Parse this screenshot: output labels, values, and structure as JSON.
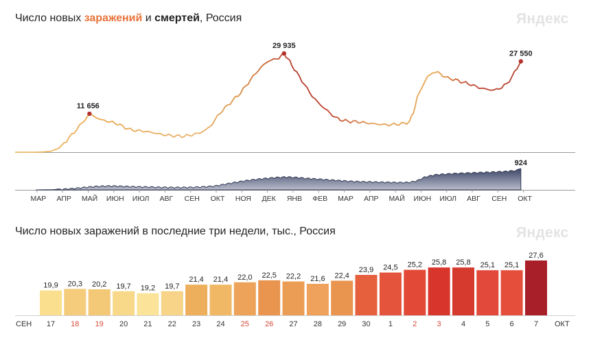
{
  "title1": {
    "prefix": "Число новых ",
    "cases": "заражений",
    "mid": " и ",
    "deaths": "смертей",
    "suffix": ", Россия"
  },
  "title2": "Число новых заражений в последние три недели, тыс., Россия",
  "logo": "Яндекс",
  "chart_data": [
    {
      "type": "line",
      "title": "Число новых заражений и смертей, Россия",
      "x_tick_labels": [
        "МАР",
        "АПР",
        "МАЙ",
        "ИЮН",
        "ИЮЛ",
        "АВГ",
        "СЕН",
        "ОКТ",
        "НОЯ",
        "ДЕК",
        "ЯНВ",
        "ФЕВ",
        "МАР",
        "АПР",
        "МАЙ",
        "ИЮН",
        "ИЮЛ",
        "АВГ",
        "СЕН",
        "ОКТ"
      ],
      "series": [
        {
          "color": "#e8a64e",
          "annotations": [
            {
              "label": "11 656",
              "value": 11656
            },
            {
              "label": "29 935",
              "value": 29935
            },
            {
              "label": "27 550",
              "value": 27550
            }
          ],
          "points": [
            [
              0,
              0
            ],
            [
              0.3,
              60
            ],
            [
              0.6,
              300
            ],
            [
              0.9,
              1200
            ],
            [
              1.2,
              3500
            ],
            [
              1.5,
              6000
            ],
            [
              1.8,
              8800
            ],
            [
              2.0,
              10500
            ],
            [
              2.1,
              11656
            ],
            [
              2.25,
              11000
            ],
            [
              2.4,
              10400
            ],
            [
              2.6,
              9700
            ],
            [
              2.8,
              9400
            ],
            [
              3.0,
              9000
            ],
            [
              3.2,
              8600
            ],
            [
              3.4,
              7800
            ],
            [
              3.7,
              6800
            ],
            [
              4.0,
              6500
            ],
            [
              4.3,
              6300
            ],
            [
              4.6,
              5900
            ],
            [
              4.9,
              5400
            ],
            [
              5.2,
              5100
            ],
            [
              5.5,
              4900
            ],
            [
              5.8,
              4850
            ],
            [
              6.0,
              5100
            ],
            [
              6.3,
              5600
            ],
            [
              6.6,
              6500
            ],
            [
              6.9,
              8500
            ],
            [
              7.1,
              11000
            ],
            [
              7.4,
              13500
            ],
            [
              7.7,
              15700
            ],
            [
              8.0,
              18000
            ],
            [
              8.3,
              21000
            ],
            [
              8.6,
              24000
            ],
            [
              8.9,
              26500
            ],
            [
              9.1,
              27700
            ],
            [
              9.3,
              28100
            ],
            [
              9.5,
              28600
            ],
            [
              9.7,
              29935
            ],
            [
              9.85,
              28400
            ],
            [
              10.0,
              26500
            ],
            [
              10.2,
              24000
            ],
            [
              10.5,
              20500
            ],
            [
              10.8,
              17000
            ],
            [
              11.1,
              14500
            ],
            [
              11.4,
              12500
            ],
            [
              11.7,
              10500
            ],
            [
              12.0,
              9600
            ],
            [
              12.3,
              9300
            ],
            [
              12.6,
              9200
            ],
            [
              12.9,
              8900
            ],
            [
              13.2,
              8600
            ],
            [
              13.5,
              8400
            ],
            [
              13.8,
              8300
            ],
            [
              14.1,
              8500
            ],
            [
              14.4,
              8700
            ],
            [
              14.6,
              9300
            ],
            [
              14.75,
              12000
            ],
            [
              14.9,
              16500
            ],
            [
              15.1,
              20000
            ],
            [
              15.3,
              22800
            ],
            [
              15.5,
              24100
            ],
            [
              15.7,
              24300
            ],
            [
              15.9,
              23200
            ],
            [
              16.1,
              22500
            ],
            [
              16.4,
              21900
            ],
            [
              16.7,
              21200
            ],
            [
              17.0,
              20500
            ],
            [
              17.3,
              19600
            ],
            [
              17.6,
              19100
            ],
            [
              17.9,
              18800
            ],
            [
              18.2,
              19600
            ],
            [
              18.4,
              20800
            ],
            [
              18.6,
              22700
            ],
            [
              18.8,
              25600
            ],
            [
              18.95,
              27550
            ]
          ]
        },
        {
          "color": "#4d5676",
          "annotations": [
            {
              "label": "924",
              "value": 924
            }
          ],
          "points": [
            [
              0,
              0
            ],
            [
              0.6,
              8
            ],
            [
              1.2,
              40
            ],
            [
              1.6,
              75
            ],
            [
              2.0,
              120
            ],
            [
              2.4,
              155
            ],
            [
              2.8,
              170
            ],
            [
              3.2,
              165
            ],
            [
              3.6,
              150
            ],
            [
              4.0,
              135
            ],
            [
              4.5,
              125
            ],
            [
              5.0,
              110
            ],
            [
              5.5,
              105
            ],
            [
              6.0,
              110
            ],
            [
              6.5,
              130
            ],
            [
              7.0,
              170
            ],
            [
              7.4,
              250
            ],
            [
              7.8,
              330
            ],
            [
              8.2,
              400
            ],
            [
              8.6,
              460
            ],
            [
              9.0,
              500
            ],
            [
              9.4,
              540
            ],
            [
              9.8,
              560
            ],
            [
              10.2,
              540
            ],
            [
              10.6,
              500
            ],
            [
              11.0,
              470
            ],
            [
              11.4,
              440
            ],
            [
              11.8,
              410
            ],
            [
              12.2,
              380
            ],
            [
              12.6,
              360
            ],
            [
              13.0,
              350
            ],
            [
              13.4,
              340
            ],
            [
              13.8,
              330
            ],
            [
              14.2,
              320
            ],
            [
              14.6,
              330
            ],
            [
              14.9,
              400
            ],
            [
              15.2,
              560
            ],
            [
              15.6,
              660
            ],
            [
              16.0,
              690
            ],
            [
              16.5,
              720
            ],
            [
              17.0,
              740
            ],
            [
              17.5,
              760
            ],
            [
              17.9,
              780
            ],
            [
              18.3,
              800
            ],
            [
              18.6,
              830
            ],
            [
              18.8,
              860
            ],
            [
              18.95,
              924
            ]
          ]
        }
      ]
    },
    {
      "type": "bar",
      "title": "Число новых заражений в последние три недели, тыс., Россия",
      "categories": [
        "17",
        "18",
        "19",
        "20",
        "21",
        "22",
        "23",
        "24",
        "25",
        "26",
        "27",
        "28",
        "29",
        "30",
        "1",
        "2",
        "3",
        "4",
        "5",
        "6",
        "7"
      ],
      "values": [
        19.9,
        20.3,
        20.2,
        19.7,
        19.2,
        19.7,
        21.4,
        21.4,
        22.0,
        22.5,
        22.2,
        21.6,
        22.4,
        23.9,
        24.5,
        25.2,
        25.8,
        25.8,
        25.1,
        25.1,
        27.6
      ],
      "value_labels": [
        "19,9",
        "20,3",
        "20,2",
        "19,7",
        "19,2",
        "19,7",
        "21,4",
        "21,4",
        "22,0",
        "22,5",
        "22,2",
        "21,6",
        "22,4",
        "23,9",
        "24,5",
        "25,2",
        "25,8",
        "25,8",
        "25,1",
        "25,1",
        "27,6"
      ],
      "weekend": [
        false,
        true,
        true,
        false,
        false,
        false,
        false,
        false,
        true,
        true,
        false,
        false,
        false,
        false,
        false,
        true,
        true,
        false,
        false,
        false,
        false
      ],
      "month_start": "СЕН",
      "month_end": "ОКТ",
      "colors": {
        "label_normal": "#333333",
        "label_weekend": "#d64a3a"
      }
    }
  ]
}
